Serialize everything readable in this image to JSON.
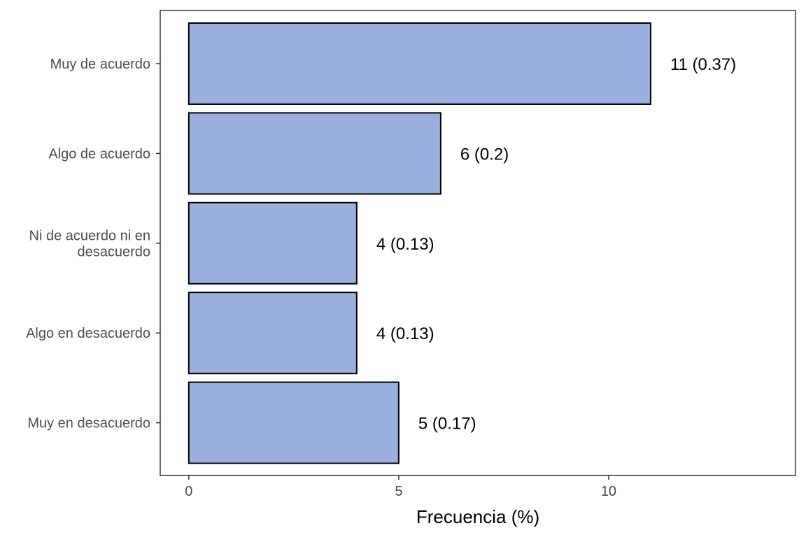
{
  "chart_data": {
    "type": "bar",
    "orientation": "horizontal",
    "categories": [
      "Muy de acuerdo",
      "Algo de acuerdo",
      "Ni de acuerdo ni en desacuerdo",
      "Algo en desacuerdo",
      "Muy en desacuerdo"
    ],
    "category_label_lines": [
      [
        "Muy de acuerdo"
      ],
      [
        "Algo de acuerdo"
      ],
      [
        "Ni de acuerdo ni en",
        "desacuerdo"
      ],
      [
        "Algo en desacuerdo"
      ],
      [
        "Muy en desacuerdo"
      ]
    ],
    "values": [
      11,
      6,
      4,
      4,
      5
    ],
    "data_labels": [
      "11 (0.37)",
      "6 (0.2)",
      "4 (0.13)",
      "4 (0.13)",
      "5 (0.17)"
    ],
    "xlabel": "Frecuencia (%)",
    "ylabel": "",
    "xlim": [
      -0.68,
      14.45
    ],
    "xticks": [
      0,
      5,
      10
    ],
    "xtick_labels": [
      "0",
      "5",
      "10"
    ],
    "grid": false,
    "bar_color": "#98AFE0",
    "bar_edge_color": "#000000"
  }
}
